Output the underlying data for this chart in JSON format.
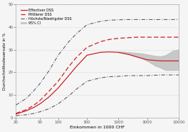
{
  "title": "",
  "xlabel": "Einkommen in 1000 CHF",
  "ylabel": "Durchschnittssteuersatz in %",
  "xlim_log": [
    20,
    10000
  ],
  "ylim": [
    0,
    50
  ],
  "yticks": [
    0,
    10,
    20,
    30,
    40,
    50
  ],
  "xticks": [
    20,
    50,
    100,
    300,
    1000,
    3000,
    10000
  ],
  "xtick_labels": [
    "20",
    "50",
    "100",
    "300",
    "1000",
    "3000",
    "10000"
  ],
  "background_color": "#f5f5f5",
  "grid_color": "#cccccc",
  "effectiver_color": "#cc2222",
  "mittlerer_color": "#cc2222",
  "hoch_niedrig_color": "#555555",
  "ci_color": "#c0c0c0",
  "legend_labels": [
    "Effectiver DSS",
    "Mittlerer DSS",
    "Höchste/Niedrigster DSS",
    "95% CI"
  ],
  "x_data": [
    20,
    30,
    40,
    50,
    70,
    100,
    150,
    200,
    300,
    500,
    700,
    1000,
    1500,
    2000,
    3000,
    5000,
    7000,
    10000
  ],
  "effectiver": [
    1.5,
    3.0,
    4.5,
    6.0,
    9.0,
    13.0,
    18.5,
    22.5,
    27.5,
    28.8,
    29.0,
    28.8,
    27.8,
    26.8,
    25.5,
    25.0,
    25.0,
    25.0
  ],
  "mittlerer": [
    1.8,
    3.5,
    5.5,
    7.5,
    11.5,
    16.0,
    22.5,
    26.5,
    31.0,
    33.5,
    34.5,
    35.0,
    35.3,
    35.5,
    35.5,
    35.5,
    35.5,
    35.5
  ],
  "hoch": [
    5.5,
    8.5,
    12.0,
    15.0,
    20.5,
    27.5,
    33.5,
    37.0,
    41.0,
    42.5,
    43.0,
    43.2,
    43.3,
    43.3,
    43.3,
    43.3,
    43.3,
    43.3
  ],
  "niedrig": [
    0.8,
    1.2,
    1.8,
    2.5,
    3.8,
    6.0,
    9.5,
    12.5,
    16.0,
    17.5,
    18.0,
    18.2,
    18.5,
    18.5,
    18.5,
    18.8,
    18.8,
    18.8
  ],
  "ci_upper": [
    29.0,
    29.0,
    28.8,
    28.5,
    28.2,
    27.8,
    27.5,
    27.2,
    27.0,
    27.5,
    28.5,
    29.5,
    30.0
  ],
  "ci_lower": [
    28.8,
    28.5,
    28.0,
    27.0,
    26.0,
    25.0,
    24.0,
    23.0,
    22.0,
    21.0,
    21.0,
    21.0,
    21.0
  ],
  "ci_x": [
    1000,
    1200,
    1500,
    2000,
    2500,
    3000,
    3500,
    4000,
    5000,
    6000,
    7000,
    8000,
    10000
  ]
}
